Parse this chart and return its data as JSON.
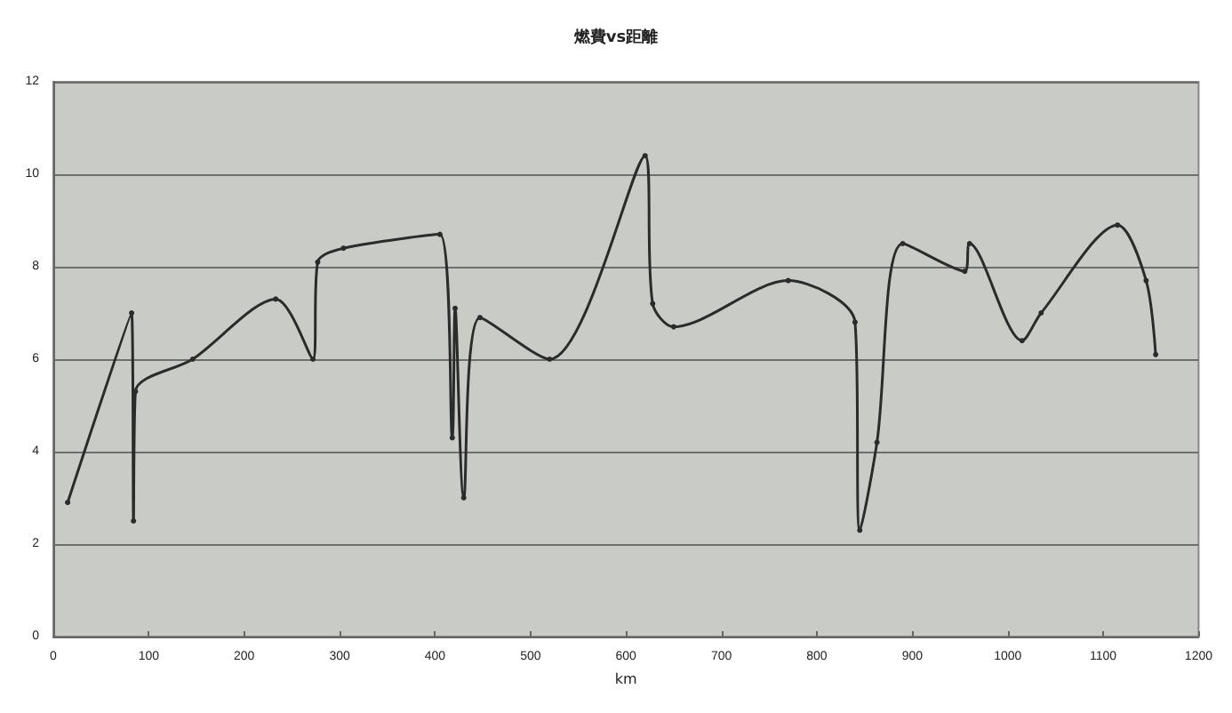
{
  "chart_data": {
    "type": "line",
    "title": "燃費vs距離",
    "xlabel": "km",
    "x": [
      15,
      82,
      84,
      86,
      146,
      233,
      272,
      277,
      304,
      405,
      418,
      421,
      430,
      447,
      520,
      620,
      628,
      650,
      770,
      840,
      845,
      863,
      890,
      955,
      960,
      1015,
      1035,
      1115,
      1145,
      1155
    ],
    "series": [
      {
        "color": "#2b2b2b",
        "values": [
          2.9,
          7.0,
          2.5,
          5.3,
          6.0,
          7.3,
          6.0,
          8.1,
          8.4,
          8.7,
          4.3,
          7.1,
          3.0,
          6.9,
          6.0,
          10.4,
          7.2,
          6.7,
          7.7,
          6.8,
          2.3,
          4.2,
          8.5,
          7.9,
          8.5,
          6.4,
          7.0,
          8.9,
          7.7,
          6.1
        ]
      }
    ],
    "xlim": [
      0,
      1200
    ],
    "xticks": [
      0,
      100,
      200,
      300,
      400,
      500,
      600,
      700,
      800,
      900,
      1000,
      1100,
      1200
    ],
    "ylim": [
      0,
      12
    ],
    "yticks": [
      0,
      2,
      4,
      6,
      8,
      10,
      12
    ],
    "grid": "y",
    "marker": "circle",
    "line_style": "solid"
  }
}
